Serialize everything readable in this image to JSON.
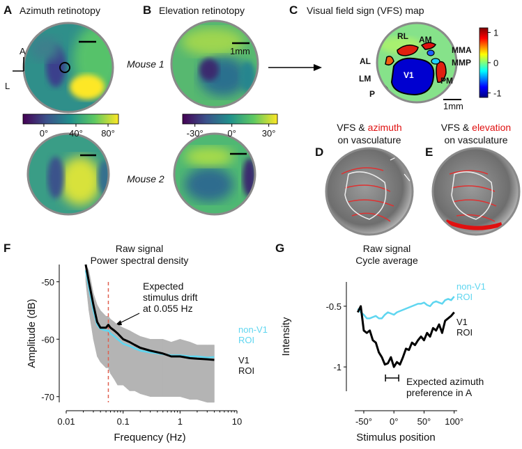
{
  "retinotopy": [
    {
      "letter": "A",
      "title": "Azimuth retinotopy",
      "colorbar": {
        "lim": [
          -26,
          93
        ],
        "ticks": [
          {
            "value": 0,
            "label": "0°"
          },
          {
            "value": 40,
            "label": "40°"
          },
          {
            "value": 80,
            "label": "80°"
          }
        ]
      }
    },
    {
      "letter": "B",
      "title": "Elevation retinotopy",
      "scale_label": "1mm",
      "colorbar": {
        "lim": [
          -40,
          37
        ],
        "ticks": [
          {
            "value": -30,
            "label": "-30°"
          },
          {
            "value": 0,
            "label": "0°"
          },
          {
            "value": 30,
            "label": "30°"
          }
        ]
      }
    }
  ],
  "orientation": [
    "A",
    "L"
  ],
  "mice": [
    "Mouse 1",
    "Mouse 2"
  ],
  "vfs_map": {
    "letter": "C",
    "title": "Visual field sign (VFS) map",
    "areas": [
      "RL",
      "AM",
      "MMA",
      "AL",
      "MMP",
      "V1",
      "LM",
      "PM",
      "P"
    ],
    "scale_label": "1mm",
    "colorbar": {
      "lim": [
        -1.15,
        1.15
      ],
      "ticks": [
        1,
        0,
        -1
      ]
    }
  },
  "overlays": [
    {
      "letter": "D",
      "title_parts": [
        "VFS & ",
        "azimuth"
      ],
      "subtitle": "on vasculature"
    },
    {
      "letter": "E",
      "title_parts": [
        "VFS & ",
        "elevation"
      ],
      "subtitle": "on vasculature"
    }
  ],
  "chart_data": [
    {
      "type": "line",
      "letter": "F",
      "title": [
        "Raw signal",
        "Power spectral density"
      ],
      "x_label": "Frequency (Hz)",
      "y_label": "Amplitude (dB)",
      "x_log": true,
      "xlim": [
        0.01,
        10
      ],
      "xticks": [
        0.01,
        0.1,
        1,
        10
      ],
      "ylim": [
        -71,
        -47
      ],
      "yticks": [
        -50,
        -60,
        -70
      ],
      "x": [
        0.022,
        0.025,
        0.03,
        0.035,
        0.04,
        0.05,
        0.055,
        0.06,
        0.07,
        0.08,
        0.1,
        0.13,
        0.16,
        0.2,
        0.3,
        0.5,
        0.7,
        1,
        1.5,
        2,
        3,
        4
      ],
      "band": {
        "color": "#b4b4b4",
        "lower": [
          -50,
          -55,
          -60,
          -63,
          -64,
          -65,
          -65,
          -66,
          -67,
          -68,
          -68,
          -69,
          -69,
          -69.5,
          -70,
          -70,
          -70,
          -70,
          -70.5,
          -70.5,
          -71,
          -71
        ],
        "upper": [
          -47,
          -48,
          -52,
          -54,
          -55,
          -56,
          -56,
          -56.5,
          -57,
          -57.5,
          -58,
          -58.5,
          -59,
          -59.5,
          -60,
          -60,
          -60.5,
          -60,
          -60.5,
          -61,
          -61,
          -61
        ]
      },
      "series": [
        {
          "name": "non-V1 ROI",
          "color": "#5fd6f0",
          "values": [
            -48,
            -51,
            -55,
            -57.5,
            -58.2,
            -58.5,
            -58.5,
            -59,
            -59.5,
            -60,
            -60.8,
            -61.2,
            -61.6,
            -62,
            -62.3,
            -62.6,
            -62.8,
            -62.8,
            -63,
            -63,
            -63.2,
            -63.1
          ]
        },
        {
          "name": "V1 ROI",
          "color": "#000000",
          "values": [
            -47,
            -50,
            -54,
            -57,
            -58,
            -58,
            -57.5,
            -58,
            -58.5,
            -59,
            -60,
            -60.5,
            -61,
            -61.5,
            -62,
            -62.5,
            -63,
            -63,
            -63.3,
            -63.4,
            -63.5,
            -63.6
          ]
        }
      ],
      "drift_x": 0.055,
      "annotation": [
        "Expected",
        "stimulus drift",
        "at 0.055 Hz"
      ]
    },
    {
      "type": "line",
      "letter": "G",
      "title": [
        "Raw signal",
        "Cycle average"
      ],
      "x_label": "Stimulus position",
      "y_label": "Intensity",
      "xlim": [
        -65,
        105
      ],
      "xticks": [
        {
          "value": -50,
          "label": "-50°"
        },
        {
          "value": 0,
          "label": "0°"
        },
        {
          "value": 50,
          "label": "50°"
        },
        {
          "value": 100,
          "label": "100°"
        }
      ],
      "ylim": [
        -1.2,
        -0.3
      ],
      "yticks": [
        -0.5,
        -1
      ],
      "x": [
        -60,
        -55,
        -50,
        -45,
        -40,
        -35,
        -30,
        -25,
        -20,
        -15,
        -10,
        -5,
        0,
        5,
        10,
        15,
        20,
        25,
        30,
        35,
        40,
        45,
        50,
        55,
        60,
        65,
        70,
        75,
        80,
        85,
        90,
        95,
        100
      ],
      "series": [
        {
          "name": "non-V1 ROI",
          "color": "#5fd6f0",
          "values": [
            -0.52,
            -0.55,
            -0.57,
            -0.6,
            -0.6,
            -0.59,
            -0.58,
            -0.6,
            -0.6,
            -0.57,
            -0.55,
            -0.56,
            -0.57,
            -0.55,
            -0.54,
            -0.53,
            -0.52,
            -0.51,
            -0.5,
            -0.49,
            -0.48,
            -0.48,
            -0.47,
            -0.49,
            -0.5,
            -0.47,
            -0.46,
            -0.47,
            -0.48,
            -0.45,
            -0.44,
            -0.45,
            -0.42
          ]
        },
        {
          "name": "V1 ROI",
          "color": "#000000",
          "values": [
            -0.55,
            -0.5,
            -0.7,
            -0.72,
            -0.7,
            -0.78,
            -0.8,
            -0.88,
            -0.92,
            -0.98,
            -0.97,
            -0.92,
            -1.0,
            -0.96,
            -0.98,
            -0.92,
            -0.85,
            -0.86,
            -0.8,
            -0.82,
            -0.78,
            -0.75,
            -0.78,
            -0.72,
            -0.75,
            -0.68,
            -0.7,
            -0.65,
            -0.72,
            -0.62,
            -0.6,
            -0.58,
            -0.55
          ]
        }
      ],
      "bracket_x": [
        -14,
        8
      ],
      "annotation": [
        "Expected azimuth",
        "preference in A"
      ]
    }
  ]
}
